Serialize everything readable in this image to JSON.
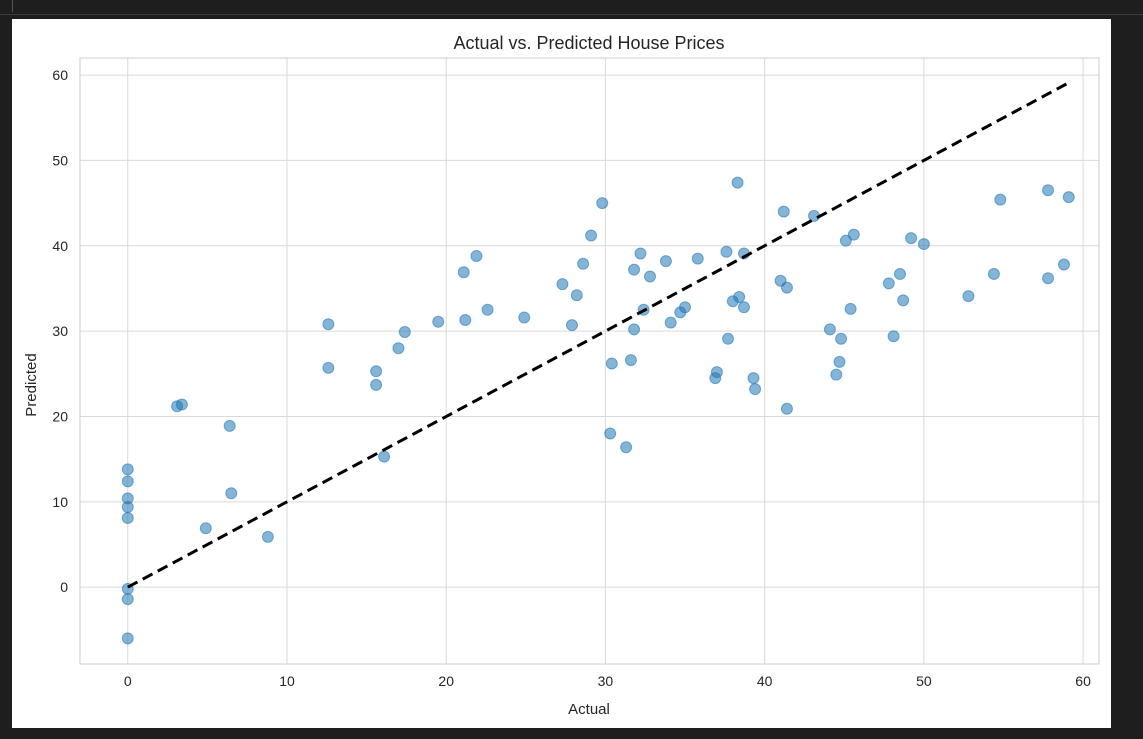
{
  "chart_data": {
    "type": "scatter",
    "title": "Actual vs. Predicted House Prices",
    "xlabel": "Actual",
    "ylabel": "Predicted",
    "xlim": [
      -3,
      61
    ],
    "ylim": [
      -9,
      62
    ],
    "xticks": [
      0,
      10,
      20,
      30,
      40,
      50,
      60
    ],
    "yticks": [
      0,
      10,
      20,
      30,
      40,
      50,
      60
    ],
    "grid": true,
    "point_color": "#1f77b4",
    "point_opacity": 0.55,
    "reference_line": {
      "style": "dashed",
      "color": "#000000",
      "from": [
        0,
        0
      ],
      "to": [
        59,
        59
      ]
    },
    "points": [
      [
        0,
        13.8
      ],
      [
        0,
        12.4
      ],
      [
        0,
        10.4
      ],
      [
        0,
        9.4
      ],
      [
        0,
        8.1
      ],
      [
        0,
        -0.2
      ],
      [
        0,
        -1.4
      ],
      [
        0,
        -6.0
      ],
      [
        3.1,
        21.2
      ],
      [
        3.4,
        21.4
      ],
      [
        4.9,
        6.9
      ],
      [
        6.4,
        18.9
      ],
      [
        6.5,
        11.0
      ],
      [
        8.8,
        5.9
      ],
      [
        12.6,
        30.8
      ],
      [
        12.6,
        25.7
      ],
      [
        15.6,
        25.3
      ],
      [
        15.6,
        23.7
      ],
      [
        16.1,
        15.3
      ],
      [
        17.0,
        28.0
      ],
      [
        17.4,
        29.9
      ],
      [
        19.5,
        31.1
      ],
      [
        21.1,
        36.9
      ],
      [
        21.2,
        31.3
      ],
      [
        21.9,
        38.8
      ],
      [
        22.6,
        32.5
      ],
      [
        24.9,
        31.6
      ],
      [
        27.3,
        35.5
      ],
      [
        27.9,
        30.7
      ],
      [
        28.2,
        34.2
      ],
      [
        28.6,
        37.9
      ],
      [
        29.1,
        41.2
      ],
      [
        29.8,
        45.0
      ],
      [
        30.3,
        18.0
      ],
      [
        30.4,
        26.2
      ],
      [
        31.3,
        16.4
      ],
      [
        31.6,
        26.6
      ],
      [
        31.8,
        30.2
      ],
      [
        31.8,
        37.2
      ],
      [
        32.2,
        39.1
      ],
      [
        32.4,
        32.5
      ],
      [
        32.8,
        36.4
      ],
      [
        33.8,
        38.2
      ],
      [
        34.1,
        31.0
      ],
      [
        34.7,
        32.2
      ],
      [
        35.0,
        32.8
      ],
      [
        35.8,
        38.5
      ],
      [
        36.9,
        24.5
      ],
      [
        37.0,
        25.2
      ],
      [
        37.6,
        39.3
      ],
      [
        37.7,
        29.1
      ],
      [
        38.0,
        33.5
      ],
      [
        38.3,
        47.4
      ],
      [
        38.4,
        34.0
      ],
      [
        38.7,
        32.8
      ],
      [
        38.7,
        39.1
      ],
      [
        39.3,
        24.5
      ],
      [
        39.4,
        23.2
      ],
      [
        41.0,
        35.9
      ],
      [
        41.2,
        44.0
      ],
      [
        41.4,
        35.1
      ],
      [
        41.4,
        20.9
      ],
      [
        43.1,
        43.5
      ],
      [
        44.1,
        30.2
      ],
      [
        44.5,
        24.9
      ],
      [
        44.7,
        26.4
      ],
      [
        44.8,
        29.1
      ],
      [
        45.1,
        40.6
      ],
      [
        45.4,
        32.6
      ],
      [
        45.6,
        41.3
      ],
      [
        47.8,
        35.6
      ],
      [
        48.1,
        29.4
      ],
      [
        48.5,
        36.7
      ],
      [
        48.7,
        33.6
      ],
      [
        49.2,
        40.9
      ],
      [
        50.0,
        40.2
      ],
      [
        52.8,
        34.1
      ],
      [
        54.4,
        36.7
      ],
      [
        54.8,
        45.4
      ],
      [
        57.8,
        36.2
      ],
      [
        57.8,
        46.5
      ],
      [
        58.8,
        37.8
      ],
      [
        59.1,
        45.7
      ]
    ]
  }
}
